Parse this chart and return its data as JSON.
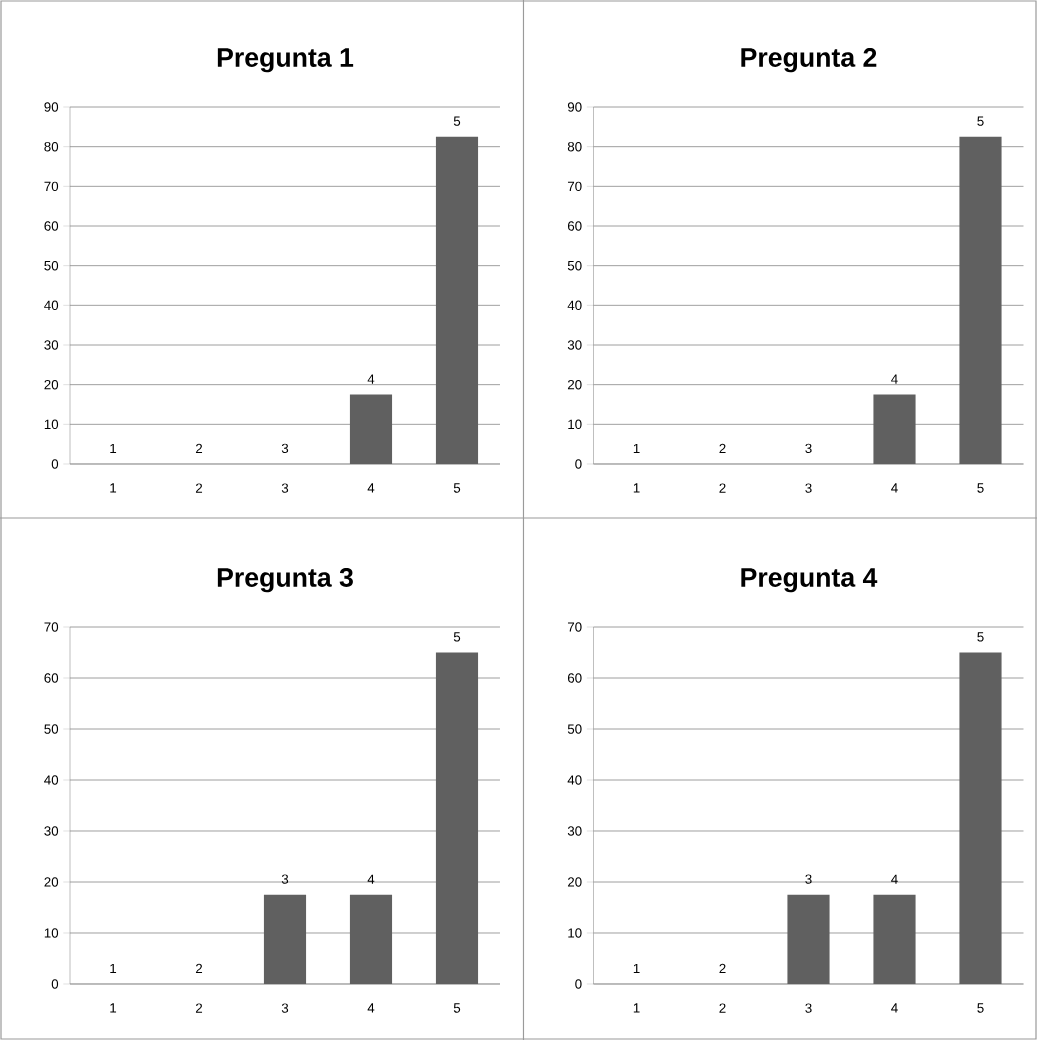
{
  "chart_data": [
    {
      "type": "bar",
      "title": "Pregunta 1",
      "categories": [
        "1",
        "2",
        "3",
        "4",
        "5"
      ],
      "values": [
        0,
        0,
        0,
        17.5,
        82.5
      ],
      "color": "#606060",
      "ylim": [
        0,
        90
      ],
      "yticks": [
        0,
        10,
        20,
        30,
        40,
        50,
        60,
        70,
        80,
        90
      ],
      "grid": "y",
      "annotations": [
        {
          "text": "1",
          "x": "1",
          "y": 0
        },
        {
          "text": "2",
          "x": "2",
          "y": 0
        },
        {
          "text": "3",
          "x": "3",
          "y": 0
        },
        {
          "text": "4",
          "x": "4",
          "y": 17.5
        },
        {
          "text": "5",
          "x": "5",
          "y": 82.5
        }
      ]
    },
    {
      "type": "bar",
      "title": "Pregunta 2",
      "categories": [
        "1",
        "2",
        "3",
        "4",
        "5"
      ],
      "values": [
        0,
        0,
        0,
        17.5,
        82.5
      ],
      "color": "#606060",
      "ylim": [
        0,
        90
      ],
      "yticks": [
        0,
        10,
        20,
        30,
        40,
        50,
        60,
        70,
        80,
        90
      ],
      "grid": "y",
      "annotations": [
        {
          "text": "1",
          "x": "1",
          "y": 0
        },
        {
          "text": "2",
          "x": "2",
          "y": 0
        },
        {
          "text": "3",
          "x": "3",
          "y": 0
        },
        {
          "text": "4",
          "x": "4",
          "y": 17.5
        },
        {
          "text": "5",
          "x": "5",
          "y": 82.5
        }
      ]
    },
    {
      "type": "bar",
      "title": "Pregunta 3",
      "categories": [
        "1",
        "2",
        "3",
        "4",
        "5"
      ],
      "values": [
        0,
        0,
        17.5,
        17.5,
        65
      ],
      "color": "#606060",
      "ylim": [
        0,
        70
      ],
      "yticks": [
        0,
        10,
        20,
        30,
        40,
        50,
        60,
        70
      ],
      "grid": "y",
      "annotations": [
        {
          "text": "1",
          "x": "1",
          "y": 0
        },
        {
          "text": "2",
          "x": "2",
          "y": 0
        },
        {
          "text": "3",
          "x": "3",
          "y": 17.5
        },
        {
          "text": "4",
          "x": "4",
          "y": 17.5
        },
        {
          "text": "5",
          "x": "5",
          "y": 65
        }
      ]
    },
    {
      "type": "bar",
      "title": "Pregunta 4",
      "categories": [
        "1",
        "2",
        "3",
        "4",
        "5"
      ],
      "values": [
        0,
        0,
        17.5,
        17.5,
        65
      ],
      "color": "#606060",
      "ylim": [
        0,
        70
      ],
      "yticks": [
        0,
        10,
        20,
        30,
        40,
        50,
        60,
        70
      ],
      "grid": "y",
      "annotations": [
        {
          "text": "1",
          "x": "1",
          "y": 0
        },
        {
          "text": "2",
          "x": "2",
          "y": 0
        },
        {
          "text": "3",
          "x": "3",
          "y": 17.5
        },
        {
          "text": "4",
          "x": "4",
          "y": 17.5
        },
        {
          "text": "5",
          "x": "5",
          "y": 65
        }
      ]
    }
  ]
}
